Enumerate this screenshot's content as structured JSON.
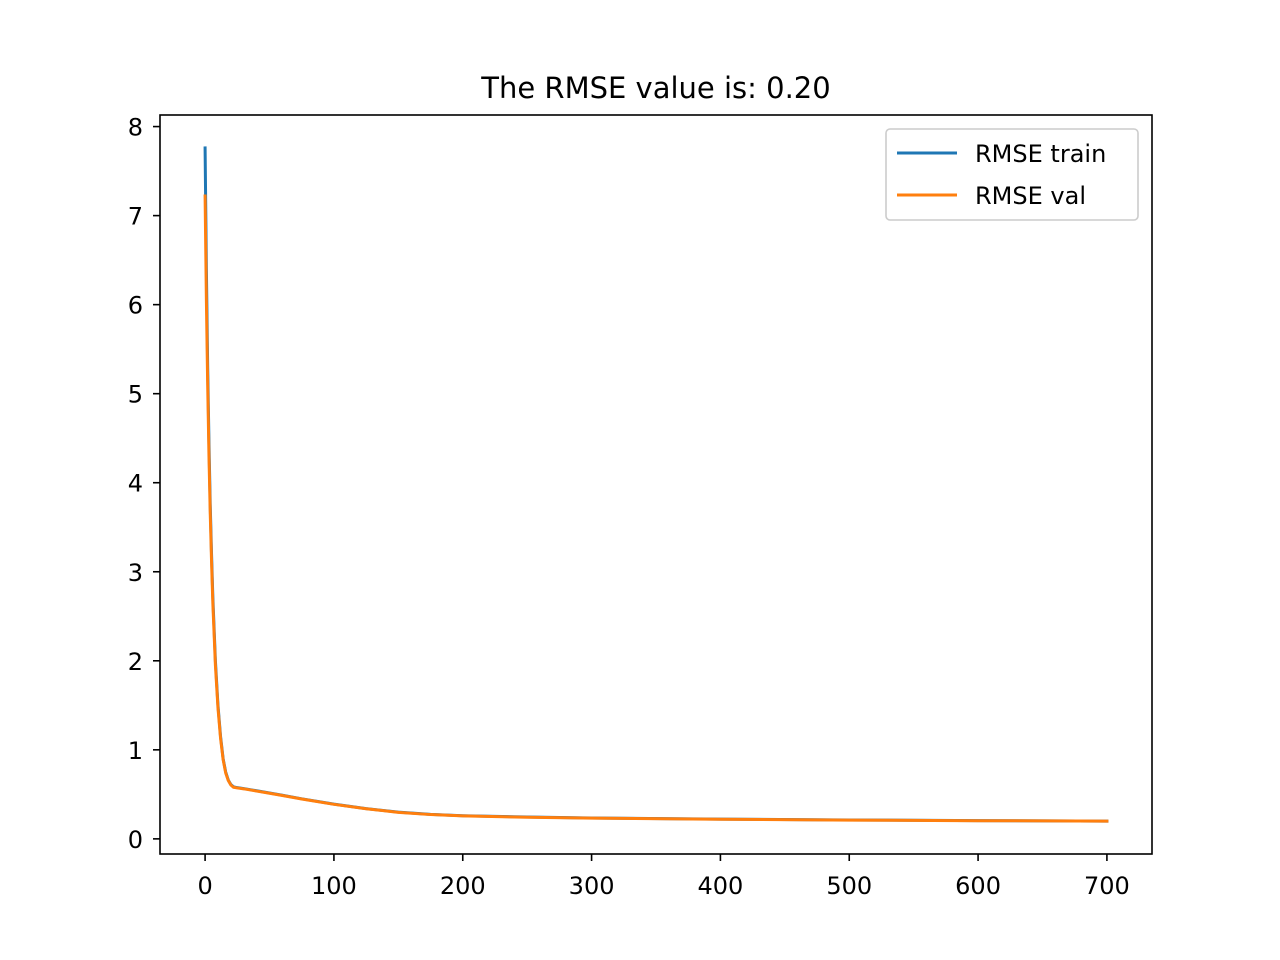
{
  "chart_data": {
    "type": "line",
    "title": "The RMSE value is: 0.20",
    "xlabel": "",
    "ylabel": "",
    "xlim": [
      -35,
      735
    ],
    "ylim": [
      -0.17,
      8.13
    ],
    "xticks": [
      0,
      100,
      200,
      300,
      400,
      500,
      600,
      700
    ],
    "yticks": [
      0,
      1,
      2,
      3,
      4,
      5,
      6,
      7,
      8
    ],
    "grid": false,
    "legend_position": "top-right",
    "series": [
      {
        "name": "RMSE train",
        "color": "#1f77b4",
        "x": [
          0,
          1,
          2,
          3,
          4,
          5,
          6,
          8,
          10,
          12,
          14,
          16,
          18,
          20,
          22,
          25,
          30,
          40,
          50,
          60,
          75,
          100,
          125,
          150,
          175,
          200,
          250,
          300,
          400,
          500,
          600,
          700
        ],
        "y": [
          7.76,
          6.4,
          5.3,
          4.45,
          3.75,
          3.2,
          2.72,
          2.0,
          1.5,
          1.15,
          0.9,
          0.75,
          0.66,
          0.61,
          0.585,
          0.575,
          0.565,
          0.54,
          0.515,
          0.49,
          0.45,
          0.39,
          0.34,
          0.3,
          0.275,
          0.26,
          0.245,
          0.235,
          0.222,
          0.212,
          0.205,
          0.2
        ]
      },
      {
        "name": "RMSE val",
        "color": "#ff7f0e",
        "x": [
          0,
          1,
          2,
          3,
          4,
          5,
          6,
          8,
          10,
          12,
          14,
          16,
          18,
          20,
          22,
          25,
          30,
          40,
          50,
          60,
          75,
          100,
          125,
          150,
          175,
          200,
          250,
          300,
          400,
          500,
          600,
          700
        ],
        "y": [
          7.22,
          6.05,
          5.1,
          4.3,
          3.65,
          3.12,
          2.65,
          1.95,
          1.47,
          1.13,
          0.89,
          0.74,
          0.655,
          0.605,
          0.58,
          0.572,
          0.562,
          0.537,
          0.512,
          0.487,
          0.448,
          0.388,
          0.338,
          0.298,
          0.273,
          0.258,
          0.243,
          0.233,
          0.221,
          0.211,
          0.204,
          0.2
        ]
      }
    ]
  }
}
